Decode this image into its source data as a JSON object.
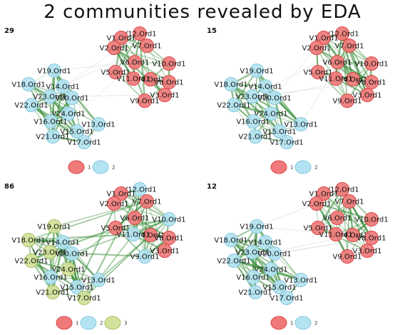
{
  "title": "2 communities revealed by EDA",
  "colors": {
    "community_1": "#f07a7a",
    "community_1_stroke": "#d94848",
    "community_2": "#b3e3f2",
    "community_2_stroke": "#86c9de",
    "community_3": "#d2e29a",
    "community_3_stroke": "#aabf63",
    "edge": "#3a8f3a",
    "edge_light": "#c9c9c9"
  },
  "panels": [
    {
      "label": "29",
      "legend": [
        "1",
        "2"
      ],
      "nodes": [
        {
          "name": "V12.Ord1",
          "c": 1
        },
        {
          "name": "V1.Ord1",
          "c": 1
        },
        {
          "name": "V7.Ord1",
          "c": 1
        },
        {
          "name": "V2.Ord1",
          "c": 1
        },
        {
          "name": "V6.Ord1",
          "c": 1
        },
        {
          "name": "V10.Ord1",
          "c": 1
        },
        {
          "name": "V5.Ord1",
          "c": 1
        },
        {
          "name": "V4.Ord1",
          "c": 1
        },
        {
          "name": "V11.Ord1",
          "c": 1
        },
        {
          "name": "V8.Ord1",
          "c": 1
        },
        {
          "name": "V3.Ord1",
          "c": 1
        },
        {
          "name": "V9.Ord1",
          "c": 1
        },
        {
          "name": "V19.Ord1",
          "c": 2
        },
        {
          "name": "V18.Ord1",
          "c": 2
        },
        {
          "name": "V14.Ord1",
          "c": 2
        },
        {
          "name": "V23.Ord1",
          "c": 2
        },
        {
          "name": "V22.Ord1",
          "c": 2
        },
        {
          "name": "V20.Ord1",
          "c": 2
        },
        {
          "name": "V24.Ord1",
          "c": 2
        },
        {
          "name": "V16.Ord1",
          "c": 2
        },
        {
          "name": "V13.Ord1",
          "c": 2
        },
        {
          "name": "V21.Ord1",
          "c": 2
        },
        {
          "name": "V15.Ord1",
          "c": 2
        },
        {
          "name": "V17.Ord1",
          "c": 2
        }
      ]
    },
    {
      "label": "15",
      "legend": [
        "1",
        "2"
      ],
      "nodes": [
        {
          "name": "V12.Ord1",
          "c": 1
        },
        {
          "name": "V1.Ord1",
          "c": 1
        },
        {
          "name": "V7.Ord1",
          "c": 1
        },
        {
          "name": "V2.Ord1",
          "c": 1
        },
        {
          "name": "V6.Ord1",
          "c": 1
        },
        {
          "name": "V10.Ord1",
          "c": 1
        },
        {
          "name": "V5.Ord1",
          "c": 1
        },
        {
          "name": "V4.Ord1",
          "c": 1
        },
        {
          "name": "V11.Ord1",
          "c": 1
        },
        {
          "name": "V8.Ord1",
          "c": 1
        },
        {
          "name": "V3.Ord1",
          "c": 1
        },
        {
          "name": "V9.Ord1",
          "c": 1
        },
        {
          "name": "V19.Ord1",
          "c": 2
        },
        {
          "name": "V18.Ord1",
          "c": 2
        },
        {
          "name": "V14.Ord1",
          "c": 2
        },
        {
          "name": "V23.Ord1",
          "c": 2
        },
        {
          "name": "V22.Ord1",
          "c": 2
        },
        {
          "name": "V20.Ord1",
          "c": 2
        },
        {
          "name": "V24.Ord1",
          "c": 2
        },
        {
          "name": "V16.Ord1",
          "c": 2
        },
        {
          "name": "V13.Ord1",
          "c": 2
        },
        {
          "name": "V21.Ord1",
          "c": 2
        },
        {
          "name": "V15.Ord1",
          "c": 2
        },
        {
          "name": "V17.Ord1",
          "c": 2
        }
      ]
    },
    {
      "label": "86",
      "legend": [
        "1",
        "2",
        "3"
      ],
      "nodes": [
        {
          "name": "V12.Ord1",
          "c": 2
        },
        {
          "name": "V1.Ord1",
          "c": 1
        },
        {
          "name": "V7.Ord1",
          "c": 1
        },
        {
          "name": "V2.Ord1",
          "c": 1
        },
        {
          "name": "V6.Ord1",
          "c": 1
        },
        {
          "name": "V10.Ord1",
          "c": 2
        },
        {
          "name": "V5.Ord1",
          "c": 1
        },
        {
          "name": "V4.Ord1",
          "c": 1
        },
        {
          "name": "V11.Ord1",
          "c": 2
        },
        {
          "name": "V8.Ord1",
          "c": 1
        },
        {
          "name": "V3.Ord1",
          "c": 1
        },
        {
          "name": "V9.Ord1",
          "c": 2
        },
        {
          "name": "V19.Ord1",
          "c": 3
        },
        {
          "name": "V18.Ord1",
          "c": 3
        },
        {
          "name": "V14.Ord1",
          "c": 2
        },
        {
          "name": "V23.Ord1",
          "c": 3
        },
        {
          "name": "V22.Ord1",
          "c": 3
        },
        {
          "name": "V20.Ord1",
          "c": 2
        },
        {
          "name": "V24.Ord1",
          "c": 3
        },
        {
          "name": "V16.Ord1",
          "c": 2
        },
        {
          "name": "V13.Ord1",
          "c": 2
        },
        {
          "name": "V21.Ord1",
          "c": 3
        },
        {
          "name": "V15.Ord1",
          "c": 2
        },
        {
          "name": "V17.Ord1",
          "c": 3
        }
      ]
    },
    {
      "label": "12",
      "legend": [
        "1",
        "2"
      ],
      "nodes": [
        {
          "name": "V12.Ord1",
          "c": 1
        },
        {
          "name": "V1.Ord1",
          "c": 1
        },
        {
          "name": "V7.Ord1",
          "c": 1
        },
        {
          "name": "V2.Ord1",
          "c": 1
        },
        {
          "name": "V6.Ord1",
          "c": 1
        },
        {
          "name": "V10.Ord1",
          "c": 1
        },
        {
          "name": "V5.Ord1",
          "c": 1
        },
        {
          "name": "V4.Ord1",
          "c": 1
        },
        {
          "name": "V11.Ord1",
          "c": 1
        },
        {
          "name": "V8.Ord1",
          "c": 1
        },
        {
          "name": "V3.Ord1",
          "c": 1
        },
        {
          "name": "V9.Ord1",
          "c": 1
        },
        {
          "name": "V19.Ord1",
          "c": 2
        },
        {
          "name": "V18.Ord1",
          "c": 2
        },
        {
          "name": "V14.Ord1",
          "c": 2
        },
        {
          "name": "V23.Ord1",
          "c": 2
        },
        {
          "name": "V22.Ord1",
          "c": 2
        },
        {
          "name": "V20.Ord1",
          "c": 2
        },
        {
          "name": "V24.Ord1",
          "c": 2
        },
        {
          "name": "V16.Ord1",
          "c": 2
        },
        {
          "name": "V13.Ord1",
          "c": 2
        },
        {
          "name": "V21.Ord1",
          "c": 2
        },
        {
          "name": "V15.Ord1",
          "c": 2
        },
        {
          "name": "V17.Ord1",
          "c": 2
        }
      ]
    }
  ]
}
